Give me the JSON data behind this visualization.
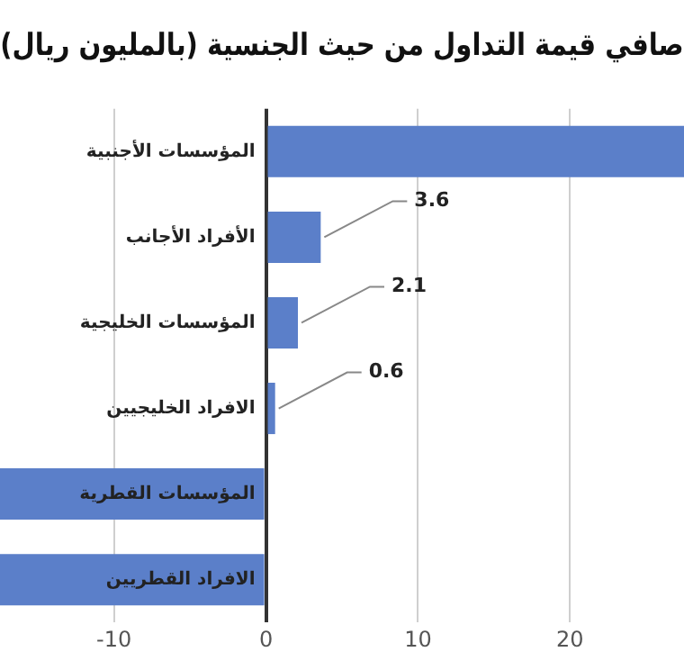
{
  "chart_data": {
    "type": "bar",
    "orientation": "horizontal",
    "title": "صافي قيمة التداول من حيث الجنسية (بالمليون ريال)",
    "categories": [
      "المؤسسات الأجنبية",
      "الأفراد الأجانب",
      "المؤسسات الخليجية",
      "الافراد الخليجيين",
      "المؤسسات القطرية",
      "الافراد القطريين"
    ],
    "values": [
      27.5,
      3.6,
      2.1,
      0.6,
      -17.5,
      -17.5
    ],
    "value_labels": [
      null,
      "3.6",
      "2.1",
      "0.6",
      null,
      null
    ],
    "color": "#5b7fc9",
    "xlim": [
      -17.5,
      27.5
    ],
    "xticks": [
      -10,
      0,
      10,
      20
    ],
    "grid": "x",
    "legend": false
  }
}
